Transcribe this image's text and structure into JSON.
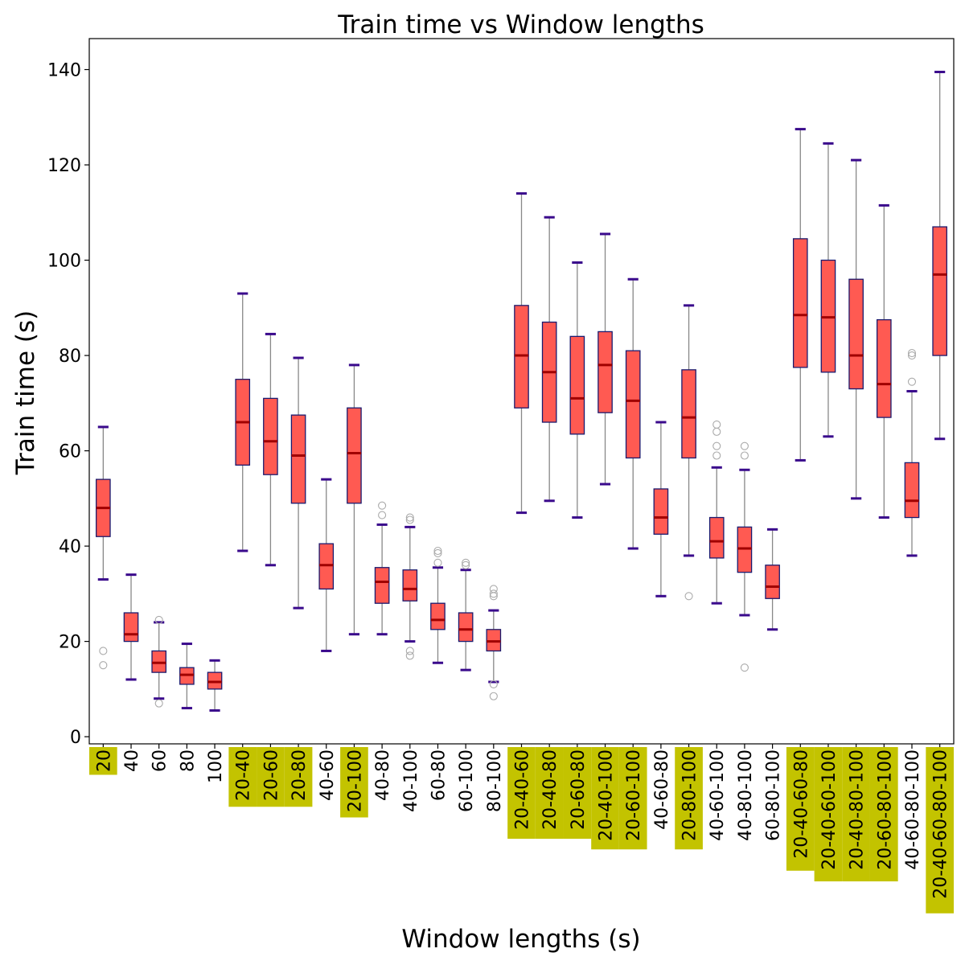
{
  "chart_data": {
    "type": "box",
    "title": "Train time vs Window lengths",
    "xlabel": "Window lengths (s)",
    "ylabel": "Train time (s)",
    "ylim": [
      -1.5,
      146.5
    ],
    "yticks": [
      0,
      20,
      40,
      60,
      80,
      100,
      120,
      140
    ],
    "grid": false,
    "colors": {
      "box_fill": "#ff5a52",
      "box_edge": "#1a1a6e",
      "median": "#a00000",
      "whisker": "#888888",
      "cap": "#3a0a8c",
      "flier": "#aaaaaa",
      "label_highlight": "#c3c300"
    },
    "categories": [
      "20",
      "40",
      "60",
      "80",
      "100",
      "20-40",
      "20-60",
      "20-80",
      "40-60",
      "20-100",
      "40-80",
      "40-100",
      "60-80",
      "60-100",
      "80-100",
      "20-40-60",
      "20-40-80",
      "20-60-80",
      "20-40-100",
      "20-60-100",
      "40-60-80",
      "20-80-100",
      "40-60-100",
      "40-80-100",
      "60-80-100",
      "20-40-60-80",
      "20-40-60-100",
      "20-40-80-100",
      "20-60-80-100",
      "40-60-80-100",
      "20-40-60-80-100"
    ],
    "highlighted": [
      "20",
      "20-40",
      "20-60",
      "20-80",
      "20-100",
      "20-40-60",
      "20-40-80",
      "20-60-80",
      "20-40-100",
      "20-60-100",
      "20-80-100",
      "20-40-60-80",
      "20-40-60-100",
      "20-40-80-100",
      "20-60-80-100",
      "20-40-60-80-100"
    ],
    "boxes": [
      {
        "whislo": 33,
        "q1": 42,
        "med": 48,
        "q3": 54,
        "whishi": 65,
        "fliers": [
          15,
          18
        ]
      },
      {
        "whislo": 12,
        "q1": 20,
        "med": 21.5,
        "q3": 26,
        "whishi": 34,
        "fliers": []
      },
      {
        "whislo": 8,
        "q1": 13.5,
        "med": 15.5,
        "q3": 18,
        "whishi": 24,
        "fliers": [
          7,
          24.5
        ]
      },
      {
        "whislo": 6,
        "q1": 11,
        "med": 13,
        "q3": 14.5,
        "whishi": 19.5,
        "fliers": []
      },
      {
        "whislo": 5.5,
        "q1": 10,
        "med": 11.5,
        "q3": 13.5,
        "whishi": 16,
        "fliers": []
      },
      {
        "whislo": 39,
        "q1": 57,
        "med": 66,
        "q3": 75,
        "whishi": 93,
        "fliers": []
      },
      {
        "whislo": 36,
        "q1": 55,
        "med": 62,
        "q3": 71,
        "whishi": 84.5,
        "fliers": []
      },
      {
        "whislo": 27,
        "q1": 49,
        "med": 59,
        "q3": 67.5,
        "whishi": 79.5,
        "fliers": []
      },
      {
        "whislo": 18,
        "q1": 31,
        "med": 36,
        "q3": 40.5,
        "whishi": 54,
        "fliers": []
      },
      {
        "whislo": 21.5,
        "q1": 49,
        "med": 59.5,
        "q3": 69,
        "whishi": 78,
        "fliers": []
      },
      {
        "whislo": 21.5,
        "q1": 28,
        "med": 32.5,
        "q3": 35.5,
        "whishi": 44.5,
        "fliers": [
          46.5,
          48.5
        ]
      },
      {
        "whislo": 20,
        "q1": 28.5,
        "med": 31,
        "q3": 35,
        "whishi": 44,
        "fliers": [
          17,
          18,
          45.5,
          46
        ]
      },
      {
        "whislo": 15.5,
        "q1": 22.5,
        "med": 24.5,
        "q3": 28,
        "whishi": 35.5,
        "fliers": [
          36.5,
          38.5,
          39
        ]
      },
      {
        "whislo": 14,
        "q1": 20,
        "med": 22.5,
        "q3": 26,
        "whishi": 35,
        "fliers": [
          36,
          36.5
        ]
      },
      {
        "whislo": 11.5,
        "q1": 18,
        "med": 20,
        "q3": 22.5,
        "whishi": 26.5,
        "fliers": [
          8.5,
          11,
          29.5,
          30,
          31
        ]
      },
      {
        "whislo": 47,
        "q1": 69,
        "med": 80,
        "q3": 90.5,
        "whishi": 114,
        "fliers": []
      },
      {
        "whislo": 49.5,
        "q1": 66,
        "med": 76.5,
        "q3": 87,
        "whishi": 109,
        "fliers": []
      },
      {
        "whislo": 46,
        "q1": 63.5,
        "med": 71,
        "q3": 84,
        "whishi": 99.5,
        "fliers": []
      },
      {
        "whislo": 53,
        "q1": 68,
        "med": 78,
        "q3": 85,
        "whishi": 105.5,
        "fliers": []
      },
      {
        "whislo": 39.5,
        "q1": 58.5,
        "med": 70.5,
        "q3": 81,
        "whishi": 96,
        "fliers": []
      },
      {
        "whislo": 29.5,
        "q1": 42.5,
        "med": 46,
        "q3": 52,
        "whishi": 66,
        "fliers": []
      },
      {
        "whislo": 38,
        "q1": 58.5,
        "med": 67,
        "q3": 77,
        "whishi": 90.5,
        "fliers": [
          29.5
        ]
      },
      {
        "whislo": 28,
        "q1": 37.5,
        "med": 41,
        "q3": 46,
        "whishi": 56.5,
        "fliers": [
          59,
          61,
          64,
          65.5
        ]
      },
      {
        "whislo": 25.5,
        "q1": 34.5,
        "med": 39.5,
        "q3": 44,
        "whishi": 56,
        "fliers": [
          14.5,
          59,
          61
        ]
      },
      {
        "whislo": 22.5,
        "q1": 29,
        "med": 31.5,
        "q3": 36,
        "whishi": 43.5,
        "fliers": []
      },
      {
        "whislo": 58,
        "q1": 77.5,
        "med": 88.5,
        "q3": 104.5,
        "whishi": 127.5,
        "fliers": []
      },
      {
        "whislo": 63,
        "q1": 76.5,
        "med": 88,
        "q3": 100,
        "whishi": 124.5,
        "fliers": []
      },
      {
        "whislo": 50,
        "q1": 73,
        "med": 80,
        "q3": 96,
        "whishi": 121,
        "fliers": []
      },
      {
        "whislo": 46,
        "q1": 67,
        "med": 74,
        "q3": 87.5,
        "whishi": 111.5,
        "fliers": []
      },
      {
        "whislo": 38,
        "q1": 46,
        "med": 49.5,
        "q3": 57.5,
        "whishi": 72.5,
        "fliers": [
          74.5,
          80,
          80.5
        ]
      },
      {
        "whislo": 62.5,
        "q1": 80,
        "med": 97,
        "q3": 107,
        "whishi": 139.5,
        "fliers": []
      }
    ]
  }
}
